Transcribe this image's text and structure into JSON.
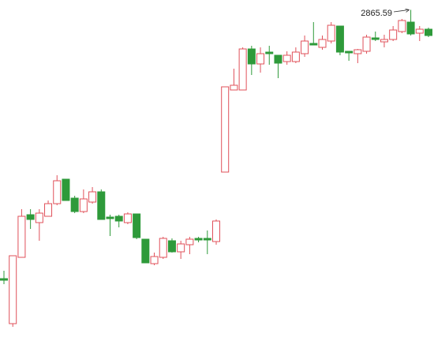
{
  "chart_data": {
    "type": "candlestick",
    "annotation": "2865.59",
    "up_color": "#e0505a",
    "down_color": "#2e9a3a",
    "ylim": [
      2446,
      2878
    ],
    "open": [
      2525,
      2468,
      2552,
      2606,
      2596,
      2604,
      2620,
      2651,
      2627,
      2610,
      2622,
      2635,
      2603,
      2604,
      2596,
      2607,
      2575,
      2544,
      2552,
      2573,
      2559,
      2568,
      2576,
      2576,
      2572,
      2660,
      2764,
      2764,
      2816,
      2797,
      2812,
      2808,
      2800,
      2800,
      2810,
      2823,
      2818,
      2826,
      2845,
      2813,
      2810,
      2813,
      2830,
      2825,
      2828,
      2838,
      2850,
      2836,
      2841
    ],
    "high": [
      2535,
      2554,
      2613,
      2613,
      2613,
      2624,
      2656,
      2651,
      2630,
      2638,
      2641,
      2638,
      2606,
      2606,
      2609,
      2607,
      2575,
      2558,
      2578,
      2576,
      2573,
      2578,
      2578,
      2586,
      2600,
      2768,
      2791,
      2818,
      2820,
      2818,
      2820,
      2808,
      2813,
      2818,
      2833,
      2850,
      2833,
      2850,
      2845,
      2813,
      2816,
      2834,
      2838,
      2834,
      2845,
      2854,
      2865.59,
      2845,
      2843
    ],
    "low": [
      2518,
      2464,
      2552,
      2588,
      2573,
      2604,
      2618,
      2624,
      2608,
      2608,
      2620,
      2600,
      2579,
      2590,
      2594,
      2575,
      2545,
      2542,
      2550,
      2558,
      2550,
      2556,
      2571,
      2556,
      2568,
      2660,
      2764,
      2764,
      2783,
      2786,
      2796,
      2779,
      2796,
      2798,
      2806,
      2821,
      2815,
      2823,
      2808,
      2801,
      2798,
      2810,
      2826,
      2818,
      2826,
      2836,
      2833,
      2826,
      2831
    ],
    "close": [
      2523,
      2554,
      2604,
      2600,
      2608,
      2620,
      2649,
      2624,
      2610,
      2626,
      2635,
      2600,
      2601,
      2598,
      2607,
      2577,
      2545,
      2553,
      2576,
      2559,
      2569,
      2575,
      2574,
      2574,
      2598,
      2768,
      2770,
      2816,
      2797,
      2810,
      2810,
      2798,
      2808,
      2812,
      2826,
      2821,
      2828,
      2846,
      2812,
      2811,
      2815,
      2831,
      2828,
      2828,
      2840,
      2852,
      2835,
      2841,
      2833
    ]
  }
}
